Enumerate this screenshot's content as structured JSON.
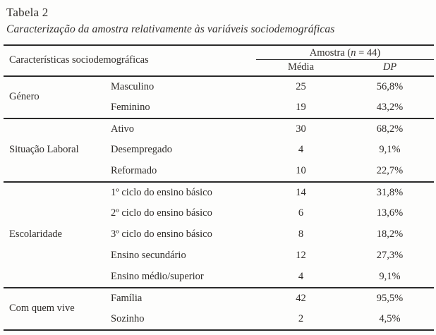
{
  "page": {
    "table_label": "Tabela 2",
    "table_caption": "Caracterização da amostra relativamente às variáveis sociodemográficas"
  },
  "table": {
    "header": {
      "left": "Características sociodemográficas",
      "amostra_prefix": "Amostra (",
      "amostra_n": "n",
      "amostra_suffix": " = 44)",
      "media": "Média",
      "dp": "DP"
    },
    "groups": [
      {
        "label": "Género",
        "rows": [
          {
            "category": "Masculino",
            "media": "25",
            "dp": "56,8%"
          },
          {
            "category": "Feminino",
            "media": "19",
            "dp": "43,2%"
          }
        ]
      },
      {
        "label": "Situação Laboral",
        "rows": [
          {
            "category": "Ativo",
            "media": "30",
            "dp": "68,2%"
          },
          {
            "category": "Desempregado",
            "media": "4",
            "dp": "9,1%"
          },
          {
            "category": "Reformado",
            "media": "10",
            "dp": "22,7%"
          }
        ]
      },
      {
        "label": "Escolaridade",
        "rows": [
          {
            "category": "1º ciclo do ensino básico",
            "media": "14",
            "dp": "31,8%"
          },
          {
            "category": "2º ciclo do ensino básico",
            "media": "6",
            "dp": "13,6%"
          },
          {
            "category": "3º ciclo do ensino básico",
            "media": "8",
            "dp": "18,2%"
          },
          {
            "category": "Ensino secundário",
            "media": "12",
            "dp": "27,3%"
          },
          {
            "category": "Ensino médio/superior",
            "media": "4",
            "dp": "9,1%"
          }
        ]
      },
      {
        "label": "Com quem vive",
        "rows": [
          {
            "category": "Família",
            "media": "42",
            "dp": "95,5%"
          },
          {
            "category": "Sozinho",
            "media": "2",
            "dp": "4,5%"
          }
        ]
      }
    ]
  }
}
